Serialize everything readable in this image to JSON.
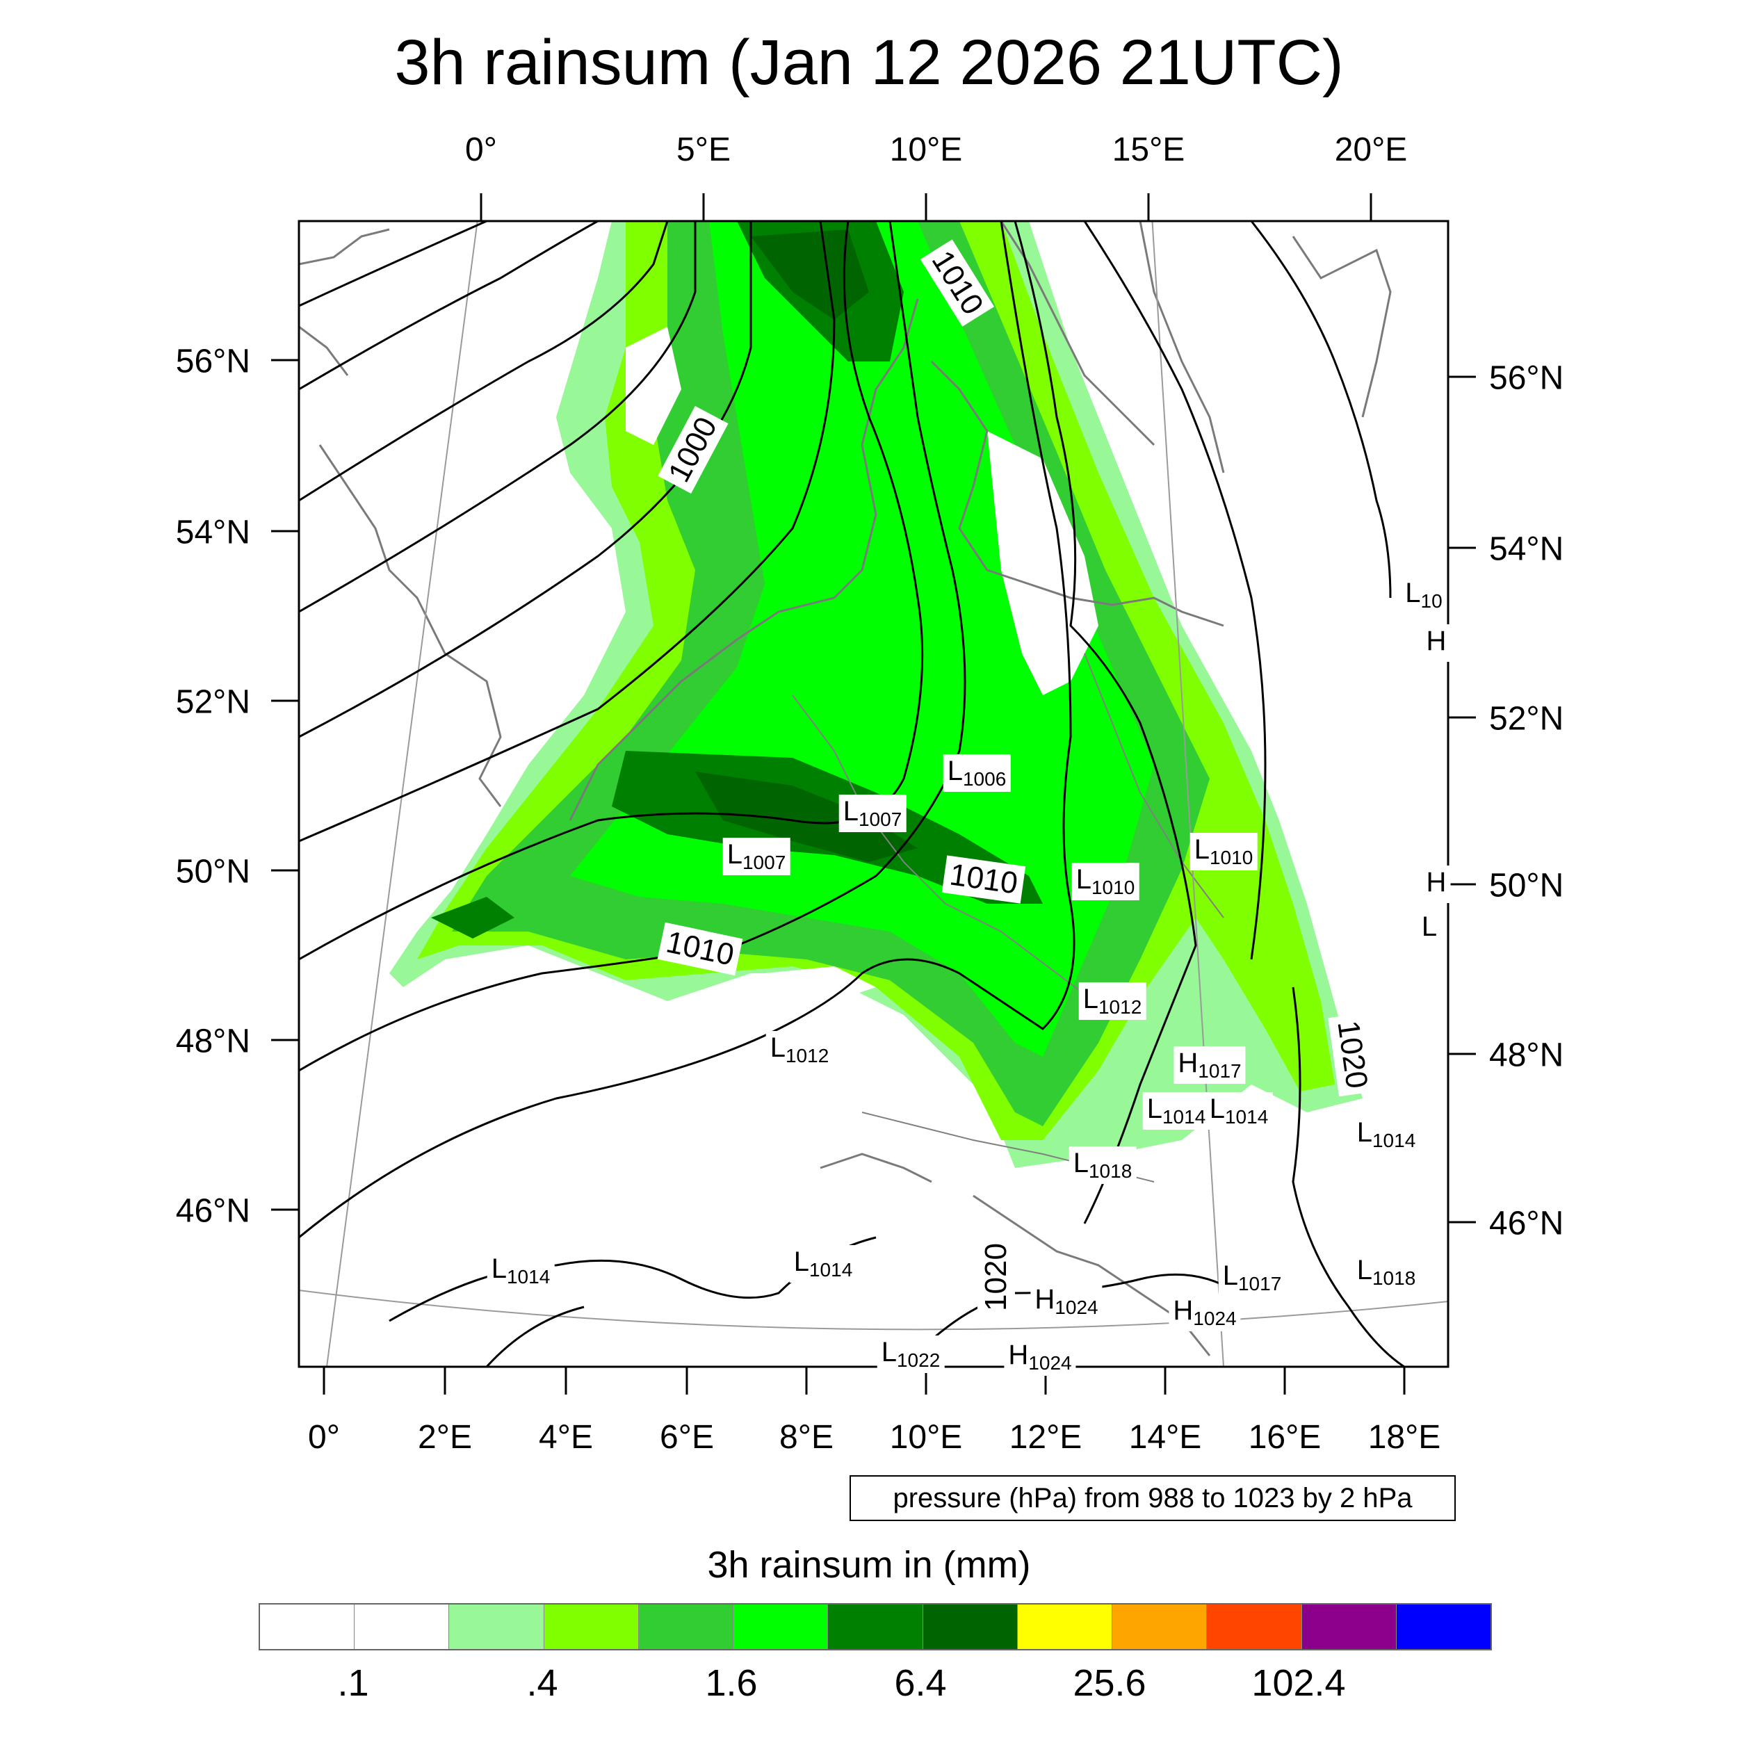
{
  "title": "3h rainsum (Jan 12 2026 21UTC)",
  "top_lon_ticks": [
    "0°",
    "5°E",
    "10°E",
    "15°E",
    "20°E"
  ],
  "bottom_lon_ticks": [
    "0°",
    "2°E",
    "4°E",
    "6°E",
    "8°E",
    "10°E",
    "12°E",
    "14°E",
    "16°E",
    "18°E"
  ],
  "left_lat_ticks": [
    "56°N",
    "54°N",
    "52°N",
    "50°N",
    "48°N",
    "46°N"
  ],
  "right_lat_ticks": [
    "56°N",
    "54°N",
    "52°N",
    "50°N",
    "48°N",
    "46°N"
  ],
  "pressure_note": "pressure (hPa) from 988 to 1023 by 2 hPa",
  "colorbar": {
    "title": "3h rainsum in (mm)",
    "colors": [
      "#ffffff",
      "#ffffff",
      "#98f898",
      "#80ff00",
      "#32cd32",
      "#00ff00",
      "#008000",
      "#006400",
      "#ffff00",
      "#ffa500",
      "#ff4500",
      "#8b008b",
      "#0000ff"
    ],
    "labels": [
      ".1",
      ".4",
      "1.6",
      "6.4",
      "25.6",
      "102.4"
    ]
  },
  "contour_labels": [
    "1000",
    "1010",
    "1010",
    "1010",
    "1020",
    "1020"
  ],
  "pressure_centers": [
    {
      "type": "L",
      "value": "1006"
    },
    {
      "type": "L",
      "value": "1007"
    },
    {
      "type": "L",
      "value": "1007"
    },
    {
      "type": "L",
      "value": "1010"
    },
    {
      "type": "L",
      "value": "1010"
    },
    {
      "type": "L",
      "value": "1012"
    },
    {
      "type": "L",
      "value": "1012"
    },
    {
      "type": "H",
      "value": "1017"
    },
    {
      "type": "L",
      "value": "1014"
    },
    {
      "type": "L",
      "value": "1014"
    },
    {
      "type": "L",
      "value": "1014"
    },
    {
      "type": "L",
      "value": "1018"
    },
    {
      "type": "L",
      "value": "1014"
    },
    {
      "type": "L",
      "value": "1014"
    },
    {
      "type": "L",
      "value": "1017"
    },
    {
      "type": "L",
      "value": "1018"
    },
    {
      "type": "H",
      "value": "1024"
    },
    {
      "type": "H",
      "value": "1024"
    },
    {
      "type": "L",
      "value": "1022"
    },
    {
      "type": "H",
      "value": "1024"
    },
    {
      "type": "L",
      "value": "10"
    },
    {
      "type": "H",
      "value": ""
    },
    {
      "type": "H",
      "value": ""
    },
    {
      "type": "L",
      "value": ""
    }
  ]
}
